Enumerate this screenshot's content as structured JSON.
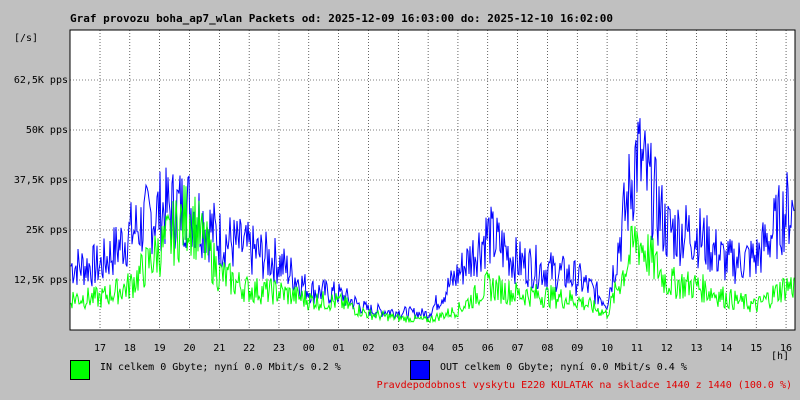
{
  "chart_data": {
    "type": "line",
    "title": "Graf provozu boha_ap7_wlan Packets od: 2025-12-09 16:03:00 do: 2025-12-10 16:02:00",
    "ylabel": "[/s]",
    "xlabel": "[h]",
    "ylim": [
      0,
      75000
    ],
    "yticks": [
      12500,
      25000,
      37500,
      50000,
      62500
    ],
    "ytick_labels": [
      "12,5K pps",
      "25K pps",
      "37,5K pps",
      "50K pps",
      "62,5K pps"
    ],
    "categories": [
      "17",
      "18",
      "19",
      "20",
      "21",
      "22",
      "23",
      "00",
      "01",
      "02",
      "03",
      "04",
      "05",
      "06",
      "07",
      "08",
      "09",
      "10",
      "11",
      "12",
      "13",
      "14",
      "15",
      "16"
    ],
    "grid": true,
    "series": [
      {
        "name": "IN",
        "color": "#00ff00",
        "values": [
          8000,
          11000,
          20000,
          29000,
          14000,
          10000,
          9500,
          7500,
          7000,
          4000,
          3000,
          2500,
          5000,
          11000,
          9000,
          8500,
          7500,
          4000,
          23000,
          12000,
          11000,
          8000,
          6000,
          11000
        ]
      },
      {
        "name": "OUT",
        "color": "#0000ff",
        "values": [
          16000,
          24000,
          30000,
          31000,
          23000,
          20000,
          17000,
          10000,
          9000,
          5000,
          4500,
          4000,
          14000,
          24000,
          17000,
          15000,
          13000,
          7000,
          44000,
          25000,
          24000,
          17000,
          18000,
          30000
        ]
      }
    ]
  },
  "legend": {
    "in_text": "IN celkem 0 Gbyte; nyní   0.0 Mbit/s 0.2 %",
    "out_text": "OUT celkem 0 Gbyte; nyní   0.0 Mbit/s 0.4 %",
    "in_color": "#00ff00",
    "out_color": "#0000ff"
  },
  "footer": {
    "text": "Pravdepodobnost vyskytu E220 KULATAK na skladce 1440 z 1440 (100.0 %)",
    "color": "#e00000"
  },
  "colors": {
    "background": "#c0c0c0",
    "plot_background": "#ffffff",
    "grid": "#000000"
  }
}
